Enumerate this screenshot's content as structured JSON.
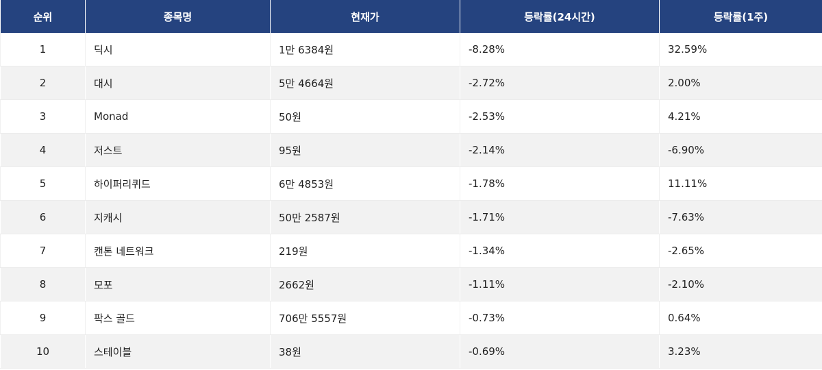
{
  "table": {
    "headers": [
      "순위",
      "종목명",
      "현재가",
      "등락률(24시간)",
      "등락률(1주)"
    ],
    "rows": [
      {
        "rank": "1",
        "name": "딕시",
        "price": "1만 6384원",
        "change_24h": "-8.28%",
        "change_1w": "32.59%"
      },
      {
        "rank": "2",
        "name": "대시",
        "price": "5만 4664원",
        "change_24h": "-2.72%",
        "change_1w": "2.00%"
      },
      {
        "rank": "3",
        "name": "Monad",
        "price": "50원",
        "change_24h": "-2.53%",
        "change_1w": "4.21%"
      },
      {
        "rank": "4",
        "name": "저스트",
        "price": "95원",
        "change_24h": "-2.14%",
        "change_1w": "-6.90%"
      },
      {
        "rank": "5",
        "name": "하이퍼리퀴드",
        "price": "6만 4853원",
        "change_24h": "-1.78%",
        "change_1w": "11.11%"
      },
      {
        "rank": "6",
        "name": "지캐시",
        "price": "50만 2587원",
        "change_24h": "-1.71%",
        "change_1w": "-7.63%"
      },
      {
        "rank": "7",
        "name": "캔톤 네트워크",
        "price": "219원",
        "change_24h": "-1.34%",
        "change_1w": "-2.65%"
      },
      {
        "rank": "8",
        "name": "모포",
        "price": "2662원",
        "change_24h": "-1.11%",
        "change_1w": "-2.10%"
      },
      {
        "rank": "9",
        "name": "팍스 골드",
        "price": "706만 5557원",
        "change_24h": "-0.73%",
        "change_1w": "0.64%"
      },
      {
        "rank": "10",
        "name": "스테이블",
        "price": "38원",
        "change_24h": "-0.69%",
        "change_1w": "3.23%"
      }
    ]
  },
  "colors": {
    "header_bg": "#25437f",
    "header_text": "#ffffff",
    "row_alt_bg": "#f2f2f2",
    "text": "#222222"
  }
}
